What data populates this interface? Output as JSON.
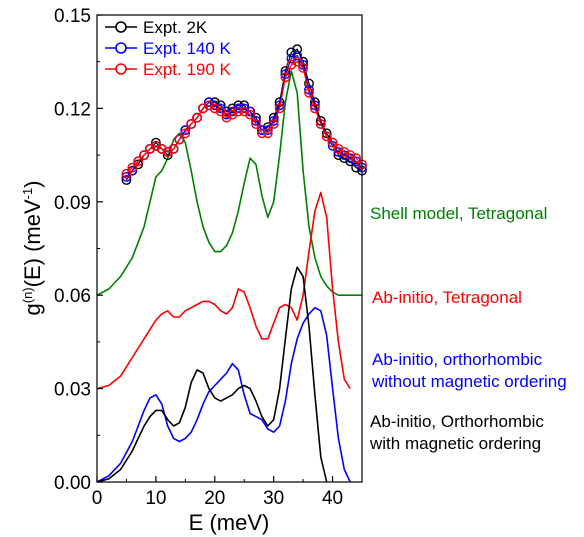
{
  "chart_data": {
    "type": "line",
    "xlabel": "E (meV)",
    "ylabel_parts": {
      "base": "g",
      "sup1": "(n)",
      "mid": "(E) (meV",
      "sup2": "-1",
      "end": ")"
    },
    "xlim": [
      0,
      45
    ],
    "ylim": [
      0,
      0.15
    ],
    "x_ticks": [
      {
        "value": 0,
        "label": "0"
      },
      {
        "value": 10,
        "label": "10"
      },
      {
        "value": 20,
        "label": "20"
      },
      {
        "value": 30,
        "label": "30"
      },
      {
        "value": 40,
        "label": "40"
      }
    ],
    "y_ticks": [
      {
        "value": 0.0,
        "label": "0.00"
      },
      {
        "value": 0.03,
        "label": "0.03"
      },
      {
        "value": 0.06,
        "label": "0.06"
      },
      {
        "value": 0.09,
        "label": "0.09"
      },
      {
        "value": 0.12,
        "label": "0.12"
      },
      {
        "value": 0.15,
        "label": "0.15"
      }
    ],
    "legend": {
      "position": "top-left"
    },
    "experimental_series": [
      {
        "name": "Expt. 2K",
        "color": "#000000",
        "x": [
          5,
          6,
          7,
          8,
          9,
          10,
          11,
          12,
          13,
          14,
          15,
          16,
          17,
          18,
          19,
          20,
          21,
          22,
          23,
          24,
          25,
          26,
          27,
          28,
          29,
          30,
          31,
          32,
          33,
          34,
          35,
          36,
          37,
          38,
          39,
          40,
          41,
          42,
          43,
          44,
          45
        ],
        "y": [
          0.097,
          0.1,
          0.102,
          0.105,
          0.107,
          0.109,
          0.107,
          0.105,
          0.107,
          0.11,
          0.113,
          0.115,
          0.117,
          0.12,
          0.122,
          0.122,
          0.121,
          0.119,
          0.12,
          0.121,
          0.121,
          0.119,
          0.117,
          0.113,
          0.114,
          0.117,
          0.122,
          0.132,
          0.138,
          0.139,
          0.135,
          0.128,
          0.122,
          0.116,
          0.112,
          0.109,
          0.105,
          0.104,
          0.103,
          0.101,
          0.1
        ]
      },
      {
        "name": "Expt. 140 K",
        "color": "#0000ff",
        "x": [
          5,
          6,
          7,
          8,
          9,
          10,
          11,
          12,
          13,
          14,
          15,
          16,
          17,
          18,
          19,
          20,
          21,
          22,
          23,
          24,
          25,
          26,
          27,
          28,
          29,
          30,
          31,
          32,
          33,
          34,
          35,
          36,
          37,
          38,
          39,
          40,
          41,
          42,
          43,
          44,
          45
        ],
        "y": [
          0.098,
          0.1,
          0.103,
          0.105,
          0.107,
          0.108,
          0.107,
          0.106,
          0.107,
          0.11,
          0.113,
          0.115,
          0.117,
          0.12,
          0.122,
          0.121,
          0.12,
          0.118,
          0.119,
          0.12,
          0.12,
          0.119,
          0.116,
          0.113,
          0.113,
          0.116,
          0.121,
          0.131,
          0.136,
          0.137,
          0.134,
          0.126,
          0.121,
          0.115,
          0.111,
          0.108,
          0.106,
          0.105,
          0.104,
          0.103,
          0.101
        ]
      },
      {
        "name": "Expt. 190 K",
        "color": "#ff0000",
        "x": [
          5,
          6,
          7,
          8,
          9,
          10,
          11,
          12,
          13,
          14,
          15,
          16,
          17,
          18,
          19,
          20,
          21,
          22,
          23,
          24,
          25,
          26,
          27,
          28,
          29,
          30,
          31,
          32,
          33,
          34,
          35,
          36,
          37,
          38,
          39,
          40,
          41,
          42,
          43,
          44,
          45
        ],
        "y": [
          0.099,
          0.101,
          0.103,
          0.105,
          0.107,
          0.108,
          0.107,
          0.106,
          0.107,
          0.11,
          0.112,
          0.115,
          0.117,
          0.12,
          0.121,
          0.12,
          0.119,
          0.117,
          0.118,
          0.119,
          0.119,
          0.118,
          0.115,
          0.112,
          0.112,
          0.115,
          0.12,
          0.13,
          0.134,
          0.135,
          0.133,
          0.125,
          0.12,
          0.115,
          0.111,
          0.109,
          0.107,
          0.106,
          0.105,
          0.104,
          0.102
        ]
      }
    ],
    "model_series": [
      {
        "color": "#008000",
        "x": [
          0,
          2,
          4,
          6,
          8,
          9,
          10,
          11,
          12,
          13,
          14,
          15,
          16,
          17,
          18,
          19,
          20,
          21,
          22,
          23,
          24,
          25,
          26,
          27,
          28,
          29,
          30,
          31,
          32,
          33,
          34,
          35,
          36,
          37,
          38,
          39,
          40,
          41,
          42,
          43,
          44,
          45
        ],
        "y": [
          0.06,
          0.062,
          0.066,
          0.072,
          0.082,
          0.09,
          0.098,
          0.1,
          0.104,
          0.11,
          0.112,
          0.109,
          0.1,
          0.09,
          0.082,
          0.077,
          0.074,
          0.074,
          0.076,
          0.08,
          0.087,
          0.096,
          0.104,
          0.102,
          0.092,
          0.085,
          0.09,
          0.105,
          0.122,
          0.132,
          0.125,
          0.1,
          0.082,
          0.072,
          0.066,
          0.063,
          0.061,
          0.06,
          0.06,
          0.06,
          0.06,
          0.06
        ]
      },
      {
        "color": "#ff0000",
        "x": [
          0,
          2,
          4,
          6,
          8,
          10,
          11,
          12,
          13,
          14,
          15,
          16,
          17,
          18,
          19,
          20,
          21,
          22,
          23,
          24,
          25,
          26,
          27,
          28,
          29,
          30,
          31,
          32,
          33,
          34,
          35,
          36,
          37,
          38,
          39,
          40,
          41,
          42,
          43
        ],
        "y": [
          0.03,
          0.031,
          0.034,
          0.04,
          0.046,
          0.052,
          0.054,
          0.055,
          0.053,
          0.053,
          0.055,
          0.056,
          0.057,
          0.058,
          0.058,
          0.057,
          0.055,
          0.054,
          0.056,
          0.062,
          0.061,
          0.056,
          0.05,
          0.046,
          0.046,
          0.051,
          0.056,
          0.057,
          0.056,
          0.052,
          0.06,
          0.074,
          0.087,
          0.093,
          0.085,
          0.062,
          0.045,
          0.033,
          0.03
        ]
      },
      {
        "color": "#0000ff",
        "x": [
          0,
          2,
          4,
          6,
          7,
          8,
          9,
          10,
          11,
          12,
          13,
          14,
          15,
          16,
          17,
          18,
          19,
          20,
          21,
          22,
          23,
          24,
          25,
          26,
          27,
          28,
          29,
          30,
          31,
          32,
          33,
          34,
          35,
          36,
          37,
          38,
          39,
          40,
          41,
          42,
          43
        ],
        "y": [
          0.0,
          0.002,
          0.006,
          0.013,
          0.018,
          0.023,
          0.027,
          0.028,
          0.025,
          0.018,
          0.014,
          0.013,
          0.014,
          0.016,
          0.02,
          0.025,
          0.029,
          0.031,
          0.033,
          0.035,
          0.038,
          0.036,
          0.028,
          0.022,
          0.021,
          0.02,
          0.017,
          0.016,
          0.018,
          0.026,
          0.038,
          0.046,
          0.051,
          0.054,
          0.056,
          0.055,
          0.047,
          0.03,
          0.014,
          0.004,
          0.0
        ]
      },
      {
        "color": "#000000",
        "x": [
          0,
          2,
          4,
          6,
          7,
          8,
          9,
          10,
          11,
          12,
          13,
          14,
          15,
          16,
          17,
          18,
          19,
          20,
          21,
          22,
          23,
          24,
          25,
          26,
          27,
          28,
          29,
          30,
          31,
          32,
          33,
          34,
          35,
          36,
          37,
          38,
          39
        ],
        "y": [
          0.0,
          0.001,
          0.004,
          0.01,
          0.014,
          0.018,
          0.021,
          0.023,
          0.023,
          0.02,
          0.018,
          0.019,
          0.024,
          0.032,
          0.036,
          0.035,
          0.03,
          0.027,
          0.026,
          0.027,
          0.028,
          0.03,
          0.031,
          0.03,
          0.026,
          0.021,
          0.018,
          0.02,
          0.03,
          0.046,
          0.062,
          0.069,
          0.066,
          0.05,
          0.028,
          0.008,
          0.0
        ]
      }
    ],
    "annotations": [
      {
        "lines": [
          "Shell model, Tetragonal"
        ],
        "color": "#008000"
      },
      {
        "lines": [
          "Ab-initio, Tetragonal"
        ],
        "color": "#ff0000"
      },
      {
        "lines": [
          "Ab-initio, orthorhombic",
          "without magnetic ordering"
        ],
        "color": "#0000ff"
      },
      {
        "lines": [
          "Ab-initio, Orthorhombic",
          "with magnetic ordering"
        ],
        "color": "#000000"
      }
    ]
  }
}
